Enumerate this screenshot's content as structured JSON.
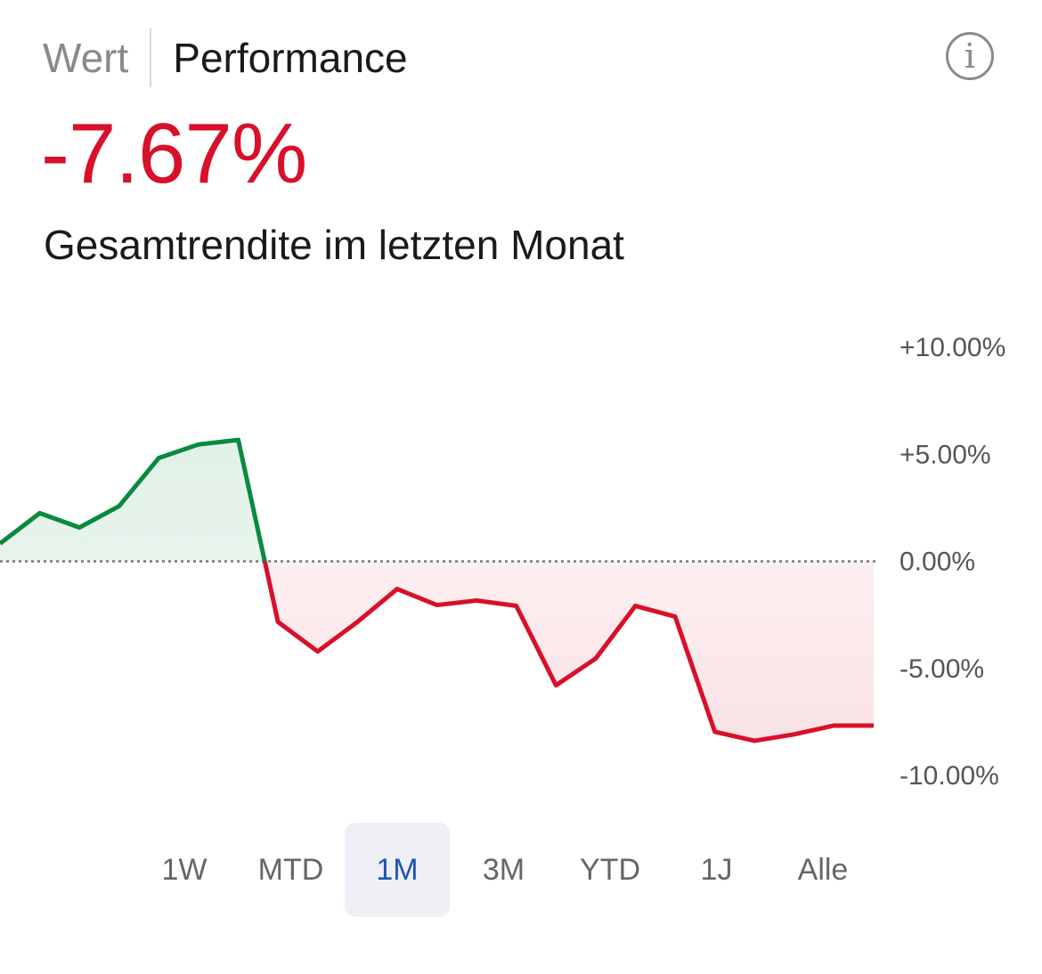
{
  "tabs": [
    {
      "label": "Wert",
      "active": false
    },
    {
      "label": "Performance",
      "active": true
    }
  ],
  "info_icon": "info-circle-icon",
  "performance_value": "-7.67%",
  "subtitle": "Gesamtrendite im letzten Monat",
  "ranges": [
    {
      "label": "1W"
    },
    {
      "label": "MTD"
    },
    {
      "label": "1M",
      "selected": true
    },
    {
      "label": "3M"
    },
    {
      "label": "YTD"
    },
    {
      "label": "1J"
    },
    {
      "label": "Alle"
    }
  ],
  "colors": {
    "positive": "#0a8a3e",
    "negative": "#d8102a",
    "selected": "#1e55b3"
  },
  "chart_data": {
    "type": "area",
    "ylim": [
      -10,
      10
    ],
    "yticks": [
      "+10.00%",
      "+5.00%",
      "0.00%",
      "-5.00%",
      "-10.00%"
    ],
    "ytick_values": [
      10,
      5,
      0,
      -5,
      -10
    ],
    "baseline": 0,
    "grid": false,
    "values": [
      0.83,
      2.25,
      1.58,
      2.58,
      4.83,
      5.46,
      5.67,
      -2.83,
      -4.21,
      -2.83,
      -1.29,
      -2.04,
      -1.83,
      -2.08,
      -5.79,
      -4.54,
      -2.08,
      -2.58,
      -7.96,
      -8.38,
      -8.08,
      -7.67,
      -7.67
    ]
  }
}
